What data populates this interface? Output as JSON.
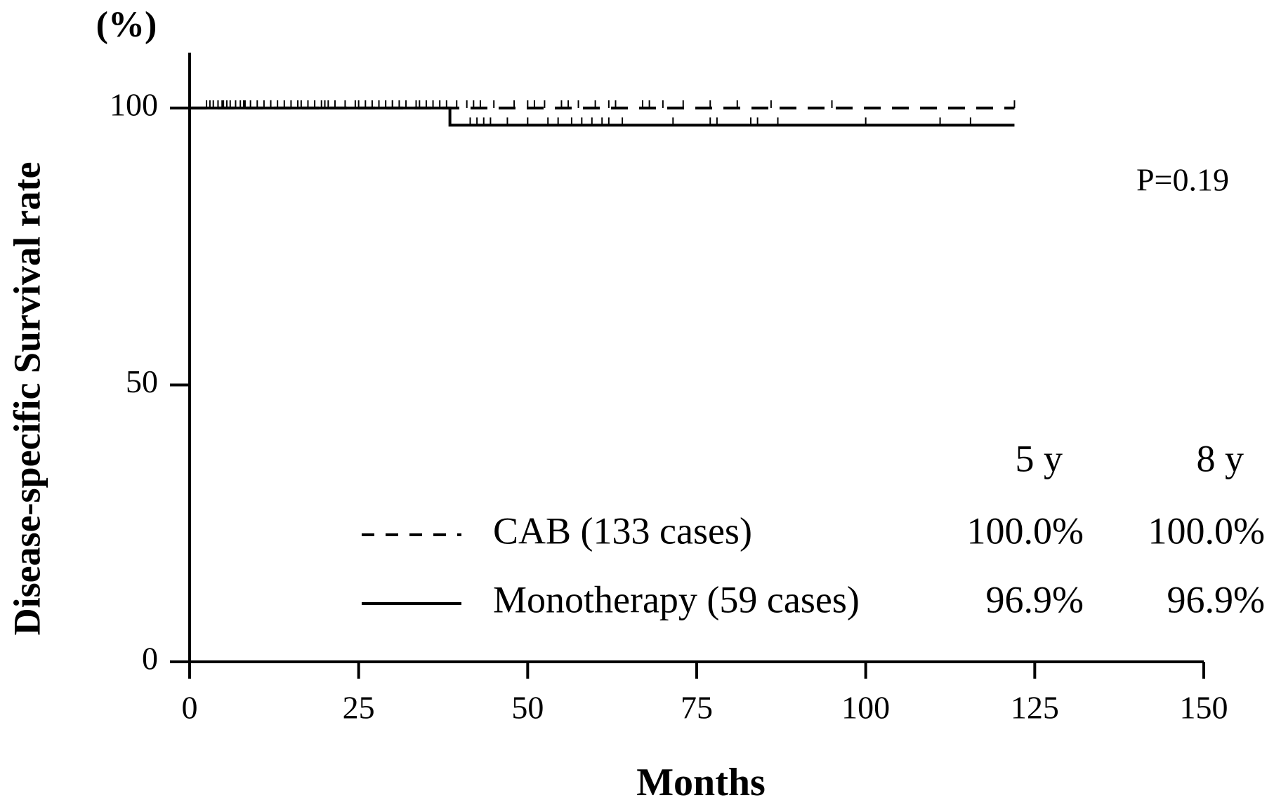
{
  "chart_data": {
    "type": "line",
    "title": "(%)",
    "x_label": "Months",
    "y_label": "Disease-specific Survival rate",
    "annotation": "P=0.19",
    "xlim": [
      0,
      150
    ],
    "xticks": [
      0,
      25,
      50,
      75,
      100,
      125,
      150
    ],
    "ylim": [
      0,
      110
    ],
    "yticks": [
      0,
      50,
      100
    ],
    "series": [
      {
        "name": "CAB (133 cases)",
        "color": "#000000",
        "dash": true,
        "x": [
          0,
          122
        ],
        "values": [
          100,
          100
        ],
        "censored": [
          3,
          3.5,
          4.2,
          4.8,
          5.5,
          6,
          6.8,
          7.5,
          8.2,
          9,
          10,
          11,
          12,
          13,
          14,
          15,
          16.5,
          17.5,
          18.5,
          19.5,
          20.5,
          21.5,
          23,
          24.5,
          26,
          27,
          28,
          29,
          30,
          31,
          32,
          33.5,
          35,
          36,
          37,
          38,
          39.5,
          41,
          42,
          43,
          45,
          48,
          50,
          51,
          52.5,
          55,
          56,
          57.5,
          60,
          62,
          63,
          67,
          68,
          70,
          73,
          77,
          81,
          86,
          95,
          122
        ]
      },
      {
        "name": "Monotherapy (59 cases)",
        "color": "#000000",
        "dash": false,
        "x": [
          0,
          38.5,
          38.5,
          122
        ],
        "values": [
          100,
          100,
          96.9,
          96.9
        ],
        "censored": [
          2.5,
          5,
          8,
          12,
          16,
          20,
          25,
          30,
          34,
          41.5,
          42.5,
          43.5,
          44.5,
          47,
          50,
          53,
          54.5,
          56.5,
          58,
          59.5,
          61,
          62,
          64,
          71.5,
          77,
          78,
          83,
          84,
          87,
          100,
          111,
          115.5
        ]
      }
    ],
    "table": {
      "columns": [
        "5 y",
        "8 y"
      ],
      "rows": [
        [
          "100.0%",
          "100.0%"
        ],
        [
          "96.9%",
          "96.9%"
        ]
      ]
    }
  }
}
